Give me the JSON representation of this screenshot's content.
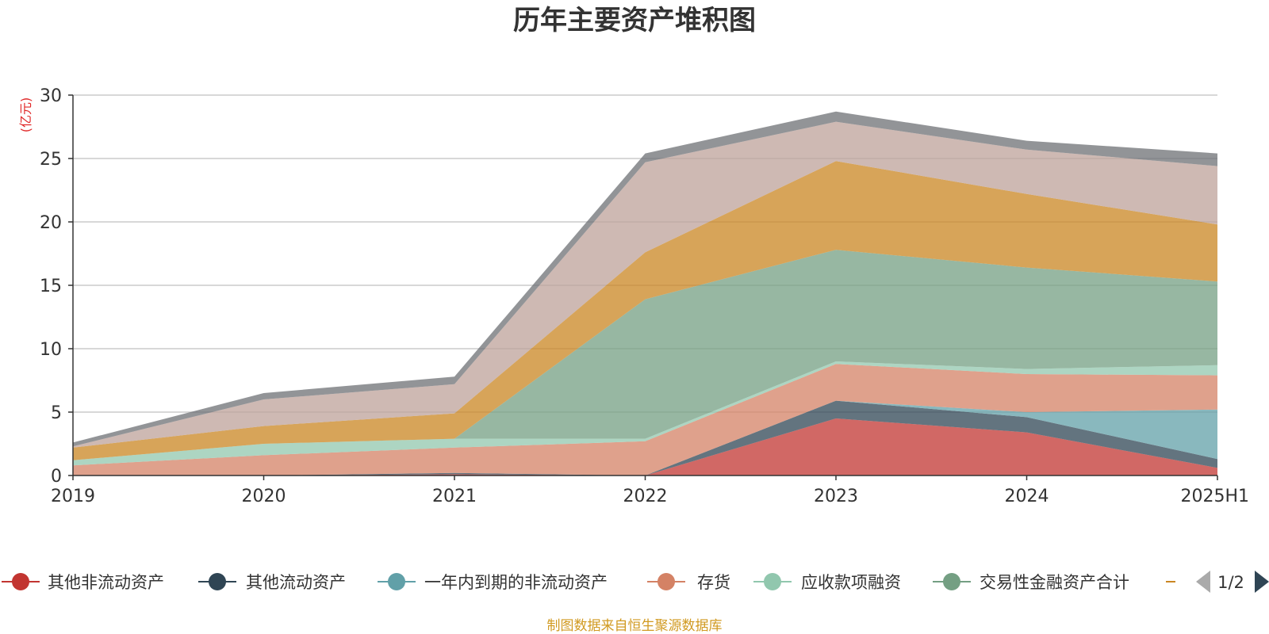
{
  "chart_data": {
    "type": "area",
    "stacked": true,
    "title": "历年主要资产堆积图",
    "unit": "(亿元)",
    "x": [
      "2019",
      "2020",
      "2021",
      "2022",
      "2023",
      "2024",
      "2025H1"
    ],
    "ylim": [
      0,
      30
    ],
    "yticks": [
      0,
      5,
      10,
      15,
      20,
      25,
      30
    ],
    "grid": true,
    "series": [
      {
        "name": "其他非流动资产",
        "color": "#c23531",
        "values": [
          0.0,
          0.0,
          0.1,
          0.0,
          4.5,
          3.4,
          0.6
        ]
      },
      {
        "name": "其他流动资产",
        "color": "#2f4554",
        "values": [
          0.0,
          0.0,
          0.1,
          0.0,
          1.4,
          1.2,
          0.7
        ]
      },
      {
        "name": "一年内到期的非流动资产",
        "color": "#61a0a8",
        "values": [
          0.0,
          0.0,
          0.0,
          0.0,
          0.0,
          0.4,
          3.9
        ]
      },
      {
        "name": "存货",
        "color": "#d48265",
        "values": [
          0.8,
          1.6,
          2.0,
          2.7,
          2.9,
          3.0,
          2.7
        ]
      },
      {
        "name": "应收款项融资",
        "color": "#91c7ae",
        "values": [
          0.4,
          0.9,
          0.7,
          0.2,
          0.2,
          0.4,
          0.8
        ]
      },
      {
        "name": "交易性金融资产合计",
        "color": "#749f83",
        "values": [
          0.0,
          0.0,
          0.0,
          11.0,
          8.8,
          8.0,
          6.6
        ]
      },
      {
        "name": "",
        "color": "#ca8622",
        "values": [
          1.0,
          1.4,
          2.0,
          3.7,
          7.0,
          5.8,
          4.5
        ]
      },
      {
        "name": "",
        "color": "#bda29a",
        "values": [
          0.1,
          2.1,
          2.3,
          7.1,
          3.1,
          3.5,
          4.6
        ]
      },
      {
        "name": "",
        "color": "#6e7074",
        "values": [
          0.3,
          0.5,
          0.6,
          0.7,
          0.8,
          0.7,
          1.0
        ]
      }
    ]
  },
  "legend": {
    "page": "1/2",
    "visible_count": 7
  },
  "source": "制图数据来自恒生聚源数据库"
}
